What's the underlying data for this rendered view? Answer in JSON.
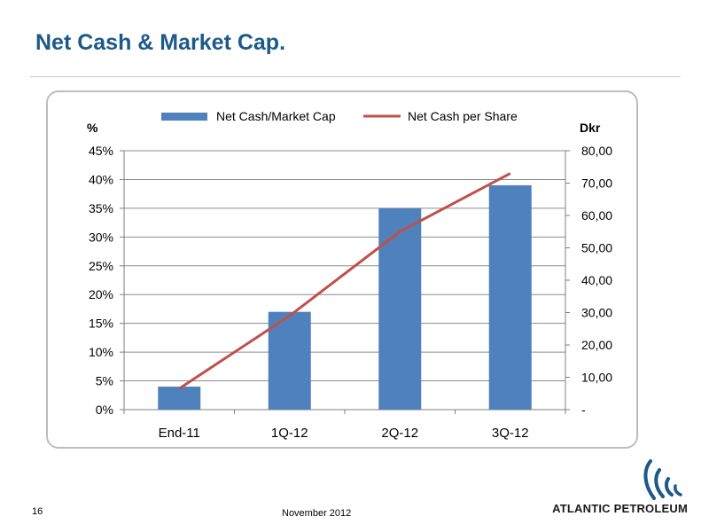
{
  "slide": {
    "title": "Net Cash & Market Cap.",
    "page_number": "16",
    "date": "November 2012",
    "company": "ATLANTIC PETROLEUM"
  },
  "colors": {
    "title": "#1b5a88",
    "bar": "#4f81bd",
    "line": "#c0504d"
  },
  "chart_data": {
    "type": "bar",
    "categories": [
      "End-11",
      "1Q-12",
      "2Q-12",
      "3Q-12"
    ],
    "series": [
      {
        "name": "Net Cash/Market Cap",
        "type": "bar",
        "axis": "left",
        "values": [
          4,
          17,
          35,
          39
        ]
      },
      {
        "name": "Net Cash per Share",
        "type": "line",
        "axis": "right",
        "values": [
          6.5,
          29,
          55,
          73
        ]
      }
    ],
    "y_left": {
      "label": "%",
      "ylim": [
        0,
        45
      ],
      "ticks": [
        "0%",
        "5%",
        "10%",
        "15%",
        "20%",
        "25%",
        "30%",
        "35%",
        "40%",
        "45%"
      ]
    },
    "y_right": {
      "label": "Dkr",
      "ylim": [
        0,
        80
      ],
      "ticks": [
        "-",
        "10,00",
        "20,00",
        "30,00",
        "40,00",
        "50,00",
        "60,00",
        "70,00",
        "80,00"
      ]
    },
    "grid": true,
    "legend": "top"
  }
}
